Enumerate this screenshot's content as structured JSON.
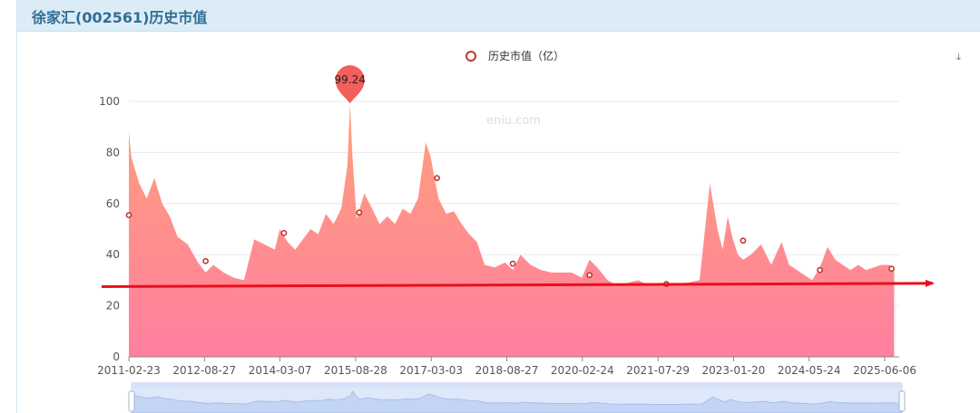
{
  "panel": {
    "title": "徐家汇(002561)历史市值"
  },
  "watermark": "eniu.com",
  "toolbox": {
    "restore_icon": "restore-icon"
  },
  "colors": {
    "header_bg": "#dcecf6",
    "title": "#2f6e95",
    "area_top": "#ffa07a",
    "area_bottom": "#ff7fa0",
    "marker": "#c23531",
    "arrow": "#e8101a",
    "grid": "#e6e8f2",
    "zoom_fill": "#dde8fb"
  },
  "chart_data": {
    "type": "area",
    "legend": [
      "历史市值（亿）"
    ],
    "legend_position": "top-center",
    "ylim": [
      0,
      100
    ],
    "y_ticks": [
      "0",
      "20",
      "40",
      "60",
      "80",
      "100"
    ],
    "grid": true,
    "x_tick_labels": [
      "2011-02-23",
      "2012-08-27",
      "2014-03-07",
      "2015-08-28",
      "2017-03-03",
      "2018-08-27",
      "2020-02-24",
      "2021-07-29",
      "2023-01-20",
      "2024-05-24",
      "2025-06-06"
    ],
    "series": [
      {
        "name": "历史市值（亿）",
        "x": [
          2011.15,
          2011.2,
          2011.35,
          2011.5,
          2011.65,
          2011.8,
          2011.95,
          2012.1,
          2012.3,
          2012.5,
          2012.65,
          2012.8,
          2013.0,
          2013.2,
          2013.4,
          2013.6,
          2013.8,
          2014.0,
          2014.1,
          2014.25,
          2014.4,
          2014.55,
          2014.7,
          2014.85,
          2015.0,
          2015.15,
          2015.3,
          2015.42,
          2015.47,
          2015.52,
          2015.6,
          2015.75,
          2015.9,
          2016.05,
          2016.2,
          2016.35,
          2016.5,
          2016.65,
          2016.8,
          2016.95,
          2017.05,
          2017.12,
          2017.2,
          2017.35,
          2017.5,
          2017.65,
          2017.8,
          2017.95,
          2018.1,
          2018.3,
          2018.5,
          2018.65,
          2018.8,
          2019.0,
          2019.2,
          2019.4,
          2019.6,
          2019.8,
          2020.0,
          2020.15,
          2020.3,
          2020.5,
          2020.7,
          2020.9,
          2021.1,
          2021.3,
          2021.55,
          2021.8,
          2022.05,
          2022.3,
          2022.5,
          2022.65,
          2022.75,
          2022.85,
          2022.95,
          2023.05,
          2023.15,
          2023.3,
          2023.5,
          2023.7,
          2023.9,
          2024.05,
          2024.2,
          2024.35,
          2024.5,
          2024.65,
          2024.8,
          2024.95,
          2025.1,
          2025.25,
          2025.4,
          2025.55,
          2025.7,
          2025.85,
          2026.0,
          2026.1
        ],
        "values": [
          88,
          78,
          68,
          62,
          70,
          60,
          55,
          47,
          44,
          37,
          33,
          36,
          33,
          31,
          30,
          46,
          44,
          42,
          50,
          45,
          42,
          46,
          50,
          48,
          56,
          52,
          58,
          75,
          99.24,
          78,
          54,
          64,
          58,
          52,
          55,
          52,
          58,
          56,
          62,
          84,
          78,
          70,
          62,
          56,
          57,
          52,
          48,
          45,
          36,
          35,
          37,
          34,
          40,
          36,
          34,
          33,
          33,
          33,
          31,
          38,
          35,
          30,
          28,
          29,
          30,
          28,
          28,
          28,
          29,
          30,
          68,
          50,
          42,
          55,
          46,
          40,
          38,
          40,
          44,
          36,
          45,
          36,
          34,
          32,
          30,
          35,
          43,
          38,
          36,
          34,
          36,
          34,
          35,
          36,
          36,
          35
        ]
      }
    ],
    "markers": [
      {
        "x": 2011.15,
        "value": 55.5
      },
      {
        "x": 2012.65,
        "value": 37.5
      },
      {
        "x": 2014.18,
        "value": 48.5
      },
      {
        "x": 2015.65,
        "value": 56.5
      },
      {
        "x": 2017.17,
        "value": 70
      },
      {
        "x": 2018.65,
        "value": 36.5
      },
      {
        "x": 2020.15,
        "value": 32
      },
      {
        "x": 2021.65,
        "value": 28.5
      },
      {
        "x": 2023.15,
        "value": 45.5
      },
      {
        "x": 2024.65,
        "value": 34
      },
      {
        "x": 2026.05,
        "value": 34.5
      }
    ],
    "max_pin": {
      "x": 2015.47,
      "value": 99.24,
      "label": "99.24"
    },
    "trend_arrow": {
      "from": [
        2011.0,
        27.5
      ],
      "to": [
        2026.8,
        28.8
      ]
    },
    "x_range": [
      2011.15,
      2026.2
    ]
  }
}
